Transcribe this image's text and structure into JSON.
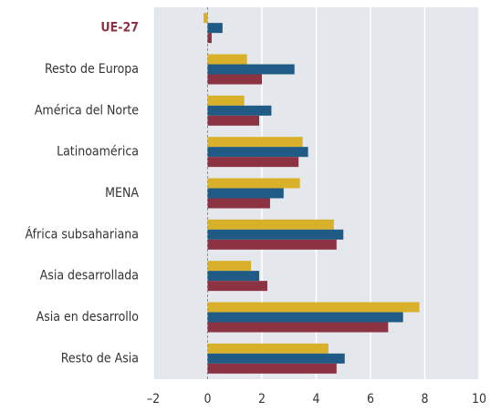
{
  "chart_data": {
    "type": "bar",
    "orientation": "horizontal",
    "categories": [
      "UE-27",
      "Resto de Europa",
      "América del Norte",
      "Latinoamérica",
      "MENA",
      "África subsahariana",
      "Asia desarrollada",
      "Asia en desarrollo",
      "Resto de Asia"
    ],
    "series": [
      {
        "color": "#d9b02a",
        "values": [
          -0.15,
          1.45,
          1.35,
          3.5,
          3.4,
          4.65,
          1.6,
          7.8,
          4.45
        ]
      },
      {
        "color": "#1f5b85",
        "values": [
          0.55,
          3.2,
          2.35,
          3.7,
          2.8,
          5.0,
          1.9,
          7.2,
          5.05
        ]
      },
      {
        "color": "#8c3343",
        "values": [
          0.15,
          2.0,
          1.9,
          3.35,
          2.3,
          4.75,
          2.2,
          6.65,
          4.75
        ]
      }
    ],
    "xlim": [
      -2,
      10
    ],
    "xticks": [
      {
        "value": -2,
        "label": "–2"
      },
      0,
      2,
      4,
      6,
      8,
      10
    ],
    "grid": true,
    "highlight": [
      0
    ]
  }
}
